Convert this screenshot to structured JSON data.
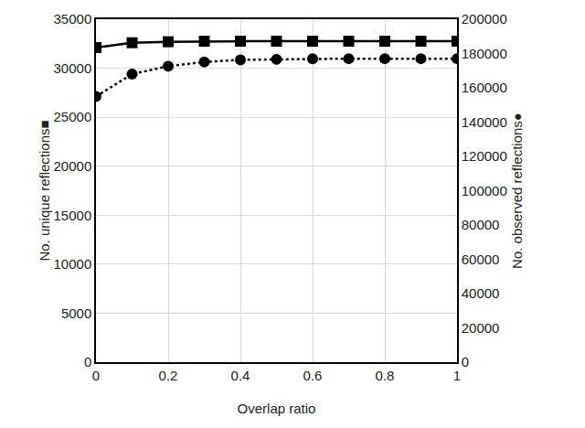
{
  "chart_data": {
    "type": "line",
    "x_label": "Overlap ratio",
    "y_label": "No. unique reflections■",
    "y2_label": "No. observed reflections●",
    "x": [
      0,
      0.1,
      0.2,
      0.3,
      0.4,
      0.5,
      0.6,
      0.7,
      0.8,
      0.9,
      1
    ],
    "series": [
      {
        "name": "No. unique reflections",
        "color": "#000000",
        "marker": "square",
        "line_style": "solid",
        "values": [
          32100,
          32600,
          32700,
          32750,
          32750,
          32750,
          32750,
          32750,
          32750,
          32750,
          32750
        ]
      },
      {
        "name": "No. observed reflections",
        "color": "#000000",
        "marker": "circle",
        "line_style": "dotted",
        "axis": "y2",
        "values": [
          154900,
          168000,
          172600,
          175100,
          176300,
          176600,
          176900,
          177000,
          177000,
          177000,
          177000
        ]
      }
    ],
    "xlim": [
      0,
      1
    ],
    "xticks": [
      0,
      0.2,
      0.4,
      0.6,
      0.8,
      1
    ],
    "ylim": [
      0,
      35000
    ],
    "yticks": [
      0,
      5000,
      10000,
      15000,
      20000,
      25000,
      30000,
      35000
    ],
    "y2lim": [
      0,
      200000
    ],
    "y2ticks": [
      0,
      20000,
      40000,
      60000,
      80000,
      100000,
      120000,
      140000,
      160000,
      180000,
      200000
    ],
    "grid": true
  }
}
